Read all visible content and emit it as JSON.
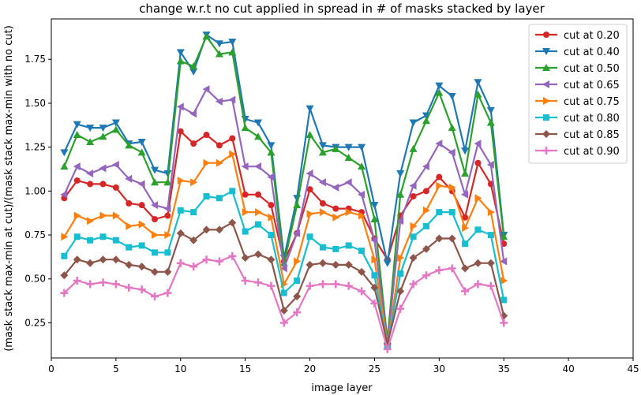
{
  "chart_data": {
    "type": "line",
    "title": "change w.r.t no cut applied in spread in # of masks stacked by layer",
    "xlabel": "image layer",
    "ylabel": "(mask stack max-min at cut)/(mask stack max-min with no cut)",
    "xlim": [
      0,
      45
    ],
    "ylim": [
      0.05,
      1.98
    ],
    "xticks": [
      0,
      5,
      10,
      15,
      20,
      25,
      30,
      35,
      40,
      45
    ],
    "yticks": [
      0.25,
      0.5,
      0.75,
      1.0,
      1.25,
      1.5,
      1.75
    ],
    "ytick_labels": [
      "0.25",
      "0.50",
      "0.75",
      "1.00",
      "1.25",
      "1.50",
      "1.75"
    ],
    "grid": false,
    "legend_position": "top-right",
    "x": [
      1,
      2,
      3,
      4,
      5,
      6,
      7,
      8,
      9,
      10,
      11,
      12,
      13,
      14,
      15,
      16,
      17,
      18,
      19,
      20,
      21,
      22,
      23,
      24,
      25,
      26,
      27,
      28,
      29,
      30,
      31,
      32,
      33,
      34,
      35
    ],
    "series": [
      {
        "name": "cut at 0.20",
        "color": "#d62728",
        "marker": "circle",
        "values": [
          0.96,
          1.06,
          1.04,
          1.04,
          1.02,
          0.93,
          0.92,
          0.84,
          0.86,
          1.34,
          1.27,
          1.32,
          1.26,
          1.3,
          0.98,
          0.98,
          0.92,
          0.6,
          0.76,
          1.01,
          0.93,
          0.9,
          0.9,
          0.88,
          0.73,
          0.61,
          0.86,
          0.97,
          1.0,
          1.08,
          1.0,
          0.85,
          1.16,
          1.04,
          0.7
        ]
      },
      {
        "name": "cut at 0.40",
        "color": "#1f77b4",
        "marker": "triangle-down",
        "values": [
          1.22,
          1.38,
          1.36,
          1.36,
          1.39,
          1.27,
          1.28,
          1.12,
          1.1,
          1.79,
          1.68,
          1.89,
          1.84,
          1.85,
          1.41,
          1.39,
          1.26,
          0.62,
          0.96,
          1.47,
          1.26,
          1.25,
          1.25,
          1.25,
          0.92,
          0.59,
          1.1,
          1.39,
          1.43,
          1.6,
          1.54,
          1.23,
          1.62,
          1.46,
          0.75
        ]
      },
      {
        "name": "cut at 0.50",
        "color": "#2ca02c",
        "marker": "triangle-up",
        "values": [
          1.14,
          1.32,
          1.28,
          1.31,
          1.35,
          1.26,
          1.22,
          1.05,
          1.05,
          1.74,
          1.71,
          1.88,
          1.78,
          1.79,
          1.36,
          1.31,
          1.22,
          0.59,
          0.92,
          1.32,
          1.22,
          1.24,
          1.19,
          1.14,
          0.84,
          0.15,
          0.98,
          1.24,
          1.4,
          1.56,
          1.36,
          1.1,
          1.55,
          1.39,
          0.74
        ]
      },
      {
        "name": "cut at 0.65",
        "color": "#9467bd",
        "marker": "triangle-left",
        "values": [
          0.98,
          1.14,
          1.1,
          1.13,
          1.15,
          1.07,
          1.04,
          0.92,
          0.9,
          1.48,
          1.44,
          1.58,
          1.51,
          1.52,
          1.14,
          1.14,
          1.08,
          0.56,
          0.76,
          1.1,
          1.05,
          1.02,
          1.05,
          0.98,
          0.72,
          0.13,
          0.83,
          1.03,
          1.14,
          1.27,
          1.22,
          0.98,
          1.27,
          1.15,
          0.6
        ]
      },
      {
        "name": "cut at 0.75",
        "color": "#ff7f0e",
        "marker": "triangle-right",
        "values": [
          0.74,
          0.86,
          0.83,
          0.86,
          0.86,
          0.8,
          0.81,
          0.75,
          0.75,
          1.06,
          1.05,
          1.16,
          1.16,
          1.21,
          0.88,
          0.88,
          0.85,
          0.47,
          0.6,
          0.87,
          0.88,
          0.85,
          0.88,
          0.86,
          0.61,
          0.12,
          0.62,
          0.8,
          0.89,
          1.03,
          1.02,
          0.79,
          0.96,
          0.88,
          0.49
        ]
      },
      {
        "name": "cut at 0.80",
        "color": "#17becf",
        "marker": "square",
        "values": [
          0.63,
          0.74,
          0.72,
          0.74,
          0.72,
          0.68,
          0.69,
          0.65,
          0.65,
          0.89,
          0.88,
          0.97,
          0.96,
          1.0,
          0.77,
          0.81,
          0.75,
          0.42,
          0.49,
          0.74,
          0.68,
          0.67,
          0.69,
          0.66,
          0.52,
          0.12,
          0.53,
          0.74,
          0.8,
          0.88,
          0.88,
          0.7,
          0.78,
          0.75,
          0.38
        ]
      },
      {
        "name": "cut at 0.85",
        "color": "#8c564b",
        "marker": "diamond",
        "values": [
          0.52,
          0.61,
          0.59,
          0.61,
          0.61,
          0.58,
          0.57,
          0.54,
          0.54,
          0.76,
          0.72,
          0.78,
          0.78,
          0.82,
          0.62,
          0.64,
          0.61,
          0.32,
          0.4,
          0.58,
          0.59,
          0.58,
          0.58,
          0.54,
          0.45,
          0.13,
          0.43,
          0.62,
          0.67,
          0.73,
          0.73,
          0.56,
          0.59,
          0.59,
          0.29
        ]
      },
      {
        "name": "cut at 0.90",
        "color": "#e377c2",
        "marker": "plus",
        "values": [
          0.42,
          0.49,
          0.47,
          0.48,
          0.47,
          0.45,
          0.44,
          0.4,
          0.42,
          0.59,
          0.57,
          0.61,
          0.6,
          0.63,
          0.49,
          0.48,
          0.46,
          0.25,
          0.31,
          0.46,
          0.47,
          0.47,
          0.46,
          0.43,
          0.36,
          0.1,
          0.33,
          0.47,
          0.52,
          0.55,
          0.56,
          0.43,
          0.47,
          0.46,
          0.25
        ]
      }
    ]
  }
}
